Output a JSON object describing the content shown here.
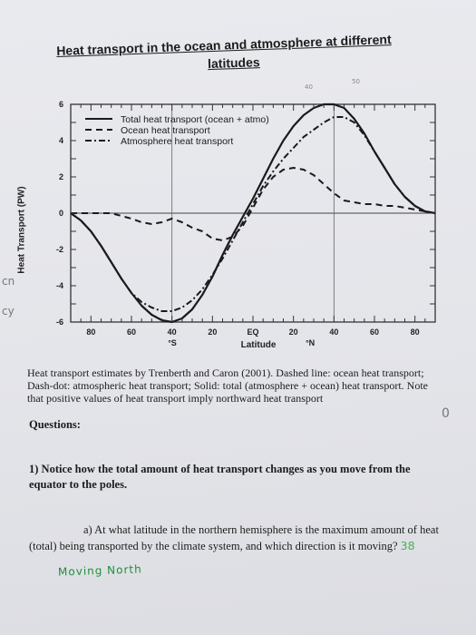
{
  "worksheet": {
    "title_line1": "Heat transport in the ocean and atmosphere at different",
    "title_line2": "latitudes",
    "caption": "Heat transport estimates by Trenberth and Caron (2001).  Dashed line: ocean heat transport; Dash-dot: atmospheric heat transport; Solid: total (atmosphere + ocean) heat transport.  Note that positive values of heat transport imply northward heat transport",
    "questions_heading": "Questions:",
    "q1": "1) Notice how the total amount of heat transport changes as you move from the equator to the poles.",
    "q1a_line1": "a) At what latitude in the northern hemisphere is the maximum amount of heat",
    "q1a_line2": "(total) being transported by the climate system, and which direction is it moving?",
    "handwritten_answer_number": "38",
    "handwritten_answer_text": "Moving North",
    "margin_note_left_top": "cn",
    "margin_note_left_bottom": "cy",
    "margin_note_right": "0",
    "title_annotations": [
      "40",
      "50"
    ]
  },
  "chart_data": {
    "type": "line",
    "title": "",
    "xlabel": "Latitude",
    "ylabel": "Heat Transport (PW)",
    "xlim": [
      -90,
      90
    ],
    "ylim": [
      -6,
      6
    ],
    "x_ticks": [
      {
        "value": -80,
        "label": "80"
      },
      {
        "value": -60,
        "label": "60"
      },
      {
        "value": -40,
        "label": "40"
      },
      {
        "value": -20,
        "label": "20"
      },
      {
        "value": 0,
        "label": "EQ"
      },
      {
        "value": 20,
        "label": "20"
      },
      {
        "value": 40,
        "label": "40"
      },
      {
        "value": 60,
        "label": "60"
      },
      {
        "value": 80,
        "label": "80"
      }
    ],
    "hemisphere_labels": {
      "south": "°S",
      "north": "°N"
    },
    "y_ticks": [
      6,
      4,
      2,
      0,
      -2,
      -4,
      -6
    ],
    "legend_position": "top-left",
    "reference_lines_x": [
      -40,
      40
    ],
    "series": [
      {
        "name": "Total heat transport (ocean + atmo)",
        "style": "solid",
        "x": [
          -90,
          -85,
          -80,
          -75,
          -70,
          -65,
          -60,
          -55,
          -50,
          -45,
          -40,
          -35,
          -30,
          -25,
          -20,
          -15,
          -10,
          -5,
          0,
          5,
          10,
          15,
          20,
          25,
          30,
          35,
          40,
          45,
          50,
          55,
          60,
          65,
          70,
          75,
          80,
          85,
          90
        ],
        "y": [
          0,
          -0.4,
          -1.0,
          -1.8,
          -2.7,
          -3.6,
          -4.4,
          -5.1,
          -5.6,
          -5.9,
          -6.0,
          -5.8,
          -5.3,
          -4.5,
          -3.5,
          -2.3,
          -1.2,
          -0.2,
          0.8,
          1.9,
          3.0,
          4.0,
          4.8,
          5.4,
          5.8,
          6.0,
          6.0,
          5.8,
          5.2,
          4.4,
          3.4,
          2.5,
          1.6,
          0.9,
          0.4,
          0.1,
          0
        ]
      },
      {
        "name": "Ocean heat transport",
        "style": "dashed",
        "x": [
          -90,
          -80,
          -70,
          -60,
          -55,
          -50,
          -45,
          -40,
          -35,
          -30,
          -25,
          -20,
          -15,
          -10,
          -5,
          0,
          5,
          10,
          15,
          20,
          25,
          30,
          35,
          40,
          45,
          50,
          55,
          60,
          65,
          70,
          75,
          80,
          85,
          90
        ],
        "y": [
          0,
          0,
          0,
          -0.3,
          -0.5,
          -0.6,
          -0.5,
          -0.3,
          -0.5,
          -0.8,
          -1.0,
          -1.4,
          -1.5,
          -1.3,
          -0.7,
          0.3,
          1.3,
          2.0,
          2.4,
          2.5,
          2.4,
          2.1,
          1.6,
          1.1,
          0.7,
          0.6,
          0.5,
          0.5,
          0.4,
          0.4,
          0.3,
          0.2,
          0.1,
          0
        ]
      },
      {
        "name": "Atmosphere heat transport",
        "style": "dash-dot",
        "x": [
          -90,
          -85,
          -80,
          -75,
          -70,
          -65,
          -60,
          -55,
          -50,
          -45,
          -40,
          -35,
          -30,
          -25,
          -20,
          -15,
          -10,
          -5,
          0,
          5,
          10,
          15,
          20,
          25,
          30,
          35,
          40,
          45,
          50,
          55,
          60,
          65,
          70,
          75,
          80,
          85,
          90
        ],
        "y": [
          0,
          -0.4,
          -1.0,
          -1.8,
          -2.7,
          -3.6,
          -4.4,
          -4.9,
          -5.2,
          -5.4,
          -5.4,
          -5.2,
          -4.8,
          -4.2,
          -3.4,
          -2.5,
          -1.5,
          -0.5,
          0.5,
          1.5,
          2.3,
          3.0,
          3.6,
          4.2,
          4.6,
          5.0,
          5.3,
          5.3,
          5.0,
          4.3,
          3.4,
          2.5,
          1.6,
          0.9,
          0.4,
          0.1,
          0
        ]
      }
    ]
  }
}
